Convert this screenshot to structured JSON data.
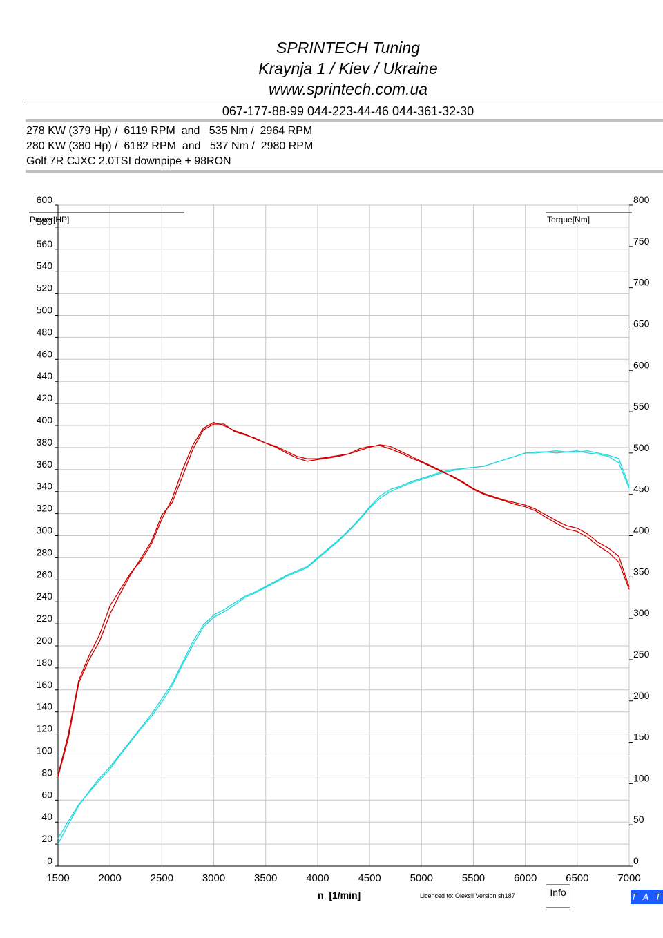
{
  "header": {
    "line1": "SPRINTECH Tuning",
    "line2": "Kraynja 1 / Kiev / Ukraine",
    "line3": "www.sprintech.com.ua",
    "phones": "067-177-88-99 044-223-44-46 044-361-32-30"
  },
  "summary": {
    "run1": "278 KW (379 Hp) /  6119 RPM  and   535 Nm /  2964 RPM",
    "run2": "280 KW (380 Hp) /  6182 RPM  and   537 Nm /  2980 RPM",
    "car": "Golf 7R CJXC 2.0TSI downpipe + 98RON"
  },
  "footer": {
    "licence": "Licenced to: Oleksii   Version sh187",
    "info_button": "Info",
    "tat_badge": "T A T"
  },
  "colors": {
    "torque": "#cc0000",
    "power": "#22d8dc",
    "grid": "#c8c8c8",
    "rule": "#b0b0b0"
  },
  "chart_data": {
    "type": "line",
    "xlabel": "n  [1/min]",
    "ylabel_left": "Power[HP]",
    "ylabel_right": "Torque[Nm]",
    "xlim": [
      1500,
      7000
    ],
    "ylim_left": [
      0,
      600
    ],
    "ylim_right": [
      0,
      800
    ],
    "x_ticks": [
      "1500",
      "2000",
      "2500",
      "3000",
      "3500",
      "4000",
      "4500",
      "5000",
      "5500",
      "6000",
      "6500",
      "7000"
    ],
    "y_left_ticks": [
      "0",
      "20",
      "40",
      "60",
      "80",
      "100",
      "120",
      "140",
      "160",
      "180",
      "200",
      "220",
      "240",
      "260",
      "280",
      "300",
      "320",
      "340",
      "360",
      "380",
      "400",
      "420",
      "440",
      "460",
      "480",
      "500",
      "520",
      "540",
      "560",
      "580",
      "600"
    ],
    "y_right_ticks": [
      "0",
      "50",
      "100",
      "150",
      "200",
      "250",
      "300",
      "350",
      "400",
      "450",
      "500",
      "550",
      "600",
      "650",
      "700",
      "750",
      "800"
    ],
    "grid": true,
    "series": [
      {
        "axis": "left",
        "points": [
          [
            1500,
            20
          ],
          [
            1600,
            38
          ],
          [
            1700,
            55
          ],
          [
            1800,
            68
          ],
          [
            1900,
            80
          ],
          [
            2000,
            90
          ],
          [
            2100,
            102
          ],
          [
            2200,
            114
          ],
          [
            2300,
            126
          ],
          [
            2400,
            138
          ],
          [
            2500,
            152
          ],
          [
            2600,
            166
          ],
          [
            2700,
            185
          ],
          [
            2800,
            204
          ],
          [
            2900,
            219
          ],
          [
            3000,
            228
          ],
          [
            3100,
            233
          ],
          [
            3200,
            239
          ],
          [
            3300,
            245
          ],
          [
            3400,
            249
          ],
          [
            3500,
            254
          ],
          [
            3600,
            259
          ],
          [
            3700,
            264
          ],
          [
            3800,
            268
          ],
          [
            3900,
            272
          ],
          [
            4000,
            280
          ],
          [
            4100,
            288
          ],
          [
            4200,
            296
          ],
          [
            4300,
            305
          ],
          [
            4400,
            315
          ],
          [
            4500,
            326
          ],
          [
            4600,
            336
          ],
          [
            4700,
            342
          ],
          [
            4800,
            345
          ],
          [
            4900,
            349
          ],
          [
            5000,
            352
          ],
          [
            5100,
            355
          ],
          [
            5200,
            358
          ],
          [
            5300,
            360
          ],
          [
            5400,
            361
          ],
          [
            5500,
            362
          ],
          [
            5600,
            363
          ],
          [
            5700,
            366
          ],
          [
            5800,
            369
          ],
          [
            5900,
            372
          ],
          [
            6000,
            375
          ],
          [
            6100,
            376
          ],
          [
            6200,
            376
          ],
          [
            6300,
            375
          ],
          [
            6400,
            376
          ],
          [
            6500,
            377
          ],
          [
            6600,
            375
          ],
          [
            6700,
            374
          ],
          [
            6800,
            372
          ],
          [
            6900,
            366
          ],
          [
            7000,
            343
          ]
        ]
      },
      {
        "axis": "left",
        "points": [
          [
            1500,
            25
          ],
          [
            1600,
            41
          ],
          [
            1700,
            56
          ],
          [
            1800,
            67
          ],
          [
            1900,
            78
          ],
          [
            2000,
            88
          ],
          [
            2100,
            101
          ],
          [
            2200,
            113
          ],
          [
            2300,
            125
          ],
          [
            2400,
            136
          ],
          [
            2500,
            149
          ],
          [
            2600,
            164
          ],
          [
            2700,
            183
          ],
          [
            2800,
            201
          ],
          [
            2900,
            217
          ],
          [
            3000,
            226
          ],
          [
            3100,
            231
          ],
          [
            3200,
            237
          ],
          [
            3300,
            244
          ],
          [
            3400,
            248
          ],
          [
            3500,
            253
          ],
          [
            3600,
            258
          ],
          [
            3700,
            263
          ],
          [
            3800,
            267
          ],
          [
            3900,
            271
          ],
          [
            4000,
            279
          ],
          [
            4100,
            287
          ],
          [
            4200,
            295
          ],
          [
            4300,
            304
          ],
          [
            4400,
            314
          ],
          [
            4500,
            325
          ],
          [
            4600,
            334
          ],
          [
            4700,
            340
          ],
          [
            4800,
            344
          ],
          [
            4900,
            348
          ],
          [
            5000,
            351
          ],
          [
            5100,
            354
          ],
          [
            5200,
            357
          ],
          [
            5300,
            359
          ],
          [
            5400,
            361
          ],
          [
            5500,
            362
          ],
          [
            5600,
            363
          ],
          [
            5700,
            366
          ],
          [
            5800,
            369
          ],
          [
            5900,
            372
          ],
          [
            6000,
            375
          ],
          [
            6100,
            375
          ],
          [
            6200,
            376
          ],
          [
            6300,
            377
          ],
          [
            6400,
            376
          ],
          [
            6500,
            376
          ],
          [
            6600,
            377
          ],
          [
            6700,
            375
          ],
          [
            6800,
            373
          ],
          [
            6900,
            370
          ],
          [
            7000,
            345
          ]
        ]
      },
      {
        "axis": "right",
        "points": [
          [
            1500,
            110
          ],
          [
            1600,
            160
          ],
          [
            1700,
            225
          ],
          [
            1800,
            255
          ],
          [
            1900,
            280
          ],
          [
            2000,
            315
          ],
          [
            2100,
            335
          ],
          [
            2200,
            355
          ],
          [
            2300,
            370
          ],
          [
            2400,
            390
          ],
          [
            2500,
            420
          ],
          [
            2600,
            445
          ],
          [
            2700,
            480
          ],
          [
            2800,
            510
          ],
          [
            2900,
            530
          ],
          [
            3000,
            537
          ],
          [
            3100,
            533
          ],
          [
            3200,
            527
          ],
          [
            3300,
            523
          ],
          [
            3400,
            517
          ],
          [
            3500,
            512
          ],
          [
            3600,
            508
          ],
          [
            3700,
            502
          ],
          [
            3800,
            496
          ],
          [
            3900,
            493
          ],
          [
            4000,
            493
          ],
          [
            4100,
            495
          ],
          [
            4200,
            497
          ],
          [
            4300,
            499
          ],
          [
            4400,
            503
          ],
          [
            4500,
            507
          ],
          [
            4600,
            510
          ],
          [
            4700,
            508
          ],
          [
            4800,
            502
          ],
          [
            4900,
            496
          ],
          [
            5000,
            490
          ],
          [
            5100,
            484
          ],
          [
            5200,
            478
          ],
          [
            5300,
            471
          ],
          [
            5400,
            464
          ],
          [
            5500,
            456
          ],
          [
            5600,
            450
          ],
          [
            5700,
            446
          ],
          [
            5800,
            442
          ],
          [
            5900,
            438
          ],
          [
            6000,
            435
          ],
          [
            6100,
            430
          ],
          [
            6200,
            422
          ],
          [
            6300,
            415
          ],
          [
            6400,
            408
          ],
          [
            6500,
            405
          ],
          [
            6600,
            398
          ],
          [
            6700,
            388
          ],
          [
            6800,
            380
          ],
          [
            6900,
            368
          ],
          [
            7000,
            335
          ]
        ]
      },
      {
        "axis": "right",
        "points": [
          [
            1500,
            108
          ],
          [
            1600,
            155
          ],
          [
            1700,
            222
          ],
          [
            1800,
            250
          ],
          [
            1900,
            272
          ],
          [
            2000,
            305
          ],
          [
            2100,
            330
          ],
          [
            2200,
            353
          ],
          [
            2300,
            373
          ],
          [
            2400,
            393
          ],
          [
            2500,
            425
          ],
          [
            2600,
            440
          ],
          [
            2700,
            472
          ],
          [
            2800,
            505
          ],
          [
            2900,
            528
          ],
          [
            3000,
            535
          ],
          [
            3100,
            535
          ],
          [
            3200,
            526
          ],
          [
            3300,
            522
          ],
          [
            3400,
            518
          ],
          [
            3500,
            512
          ],
          [
            3600,
            507
          ],
          [
            3700,
            500
          ],
          [
            3800,
            494
          ],
          [
            3900,
            490
          ],
          [
            4000,
            492
          ],
          [
            4100,
            494
          ],
          [
            4200,
            496
          ],
          [
            4300,
            499
          ],
          [
            4400,
            505
          ],
          [
            4500,
            508
          ],
          [
            4600,
            509
          ],
          [
            4700,
            505
          ],
          [
            4800,
            500
          ],
          [
            4900,
            494
          ],
          [
            5000,
            489
          ],
          [
            5100,
            483
          ],
          [
            5200,
            477
          ],
          [
            5300,
            472
          ],
          [
            5400,
            465
          ],
          [
            5500,
            457
          ],
          [
            5600,
            451
          ],
          [
            5700,
            447
          ],
          [
            5800,
            443
          ],
          [
            5900,
            440
          ],
          [
            6000,
            437
          ],
          [
            6100,
            432
          ],
          [
            6200,
            425
          ],
          [
            6300,
            418
          ],
          [
            6400,
            412
          ],
          [
            6500,
            409
          ],
          [
            6600,
            402
          ],
          [
            6700,
            392
          ],
          [
            6800,
            385
          ],
          [
            6900,
            375
          ],
          [
            7000,
            338
          ]
        ]
      }
    ]
  }
}
